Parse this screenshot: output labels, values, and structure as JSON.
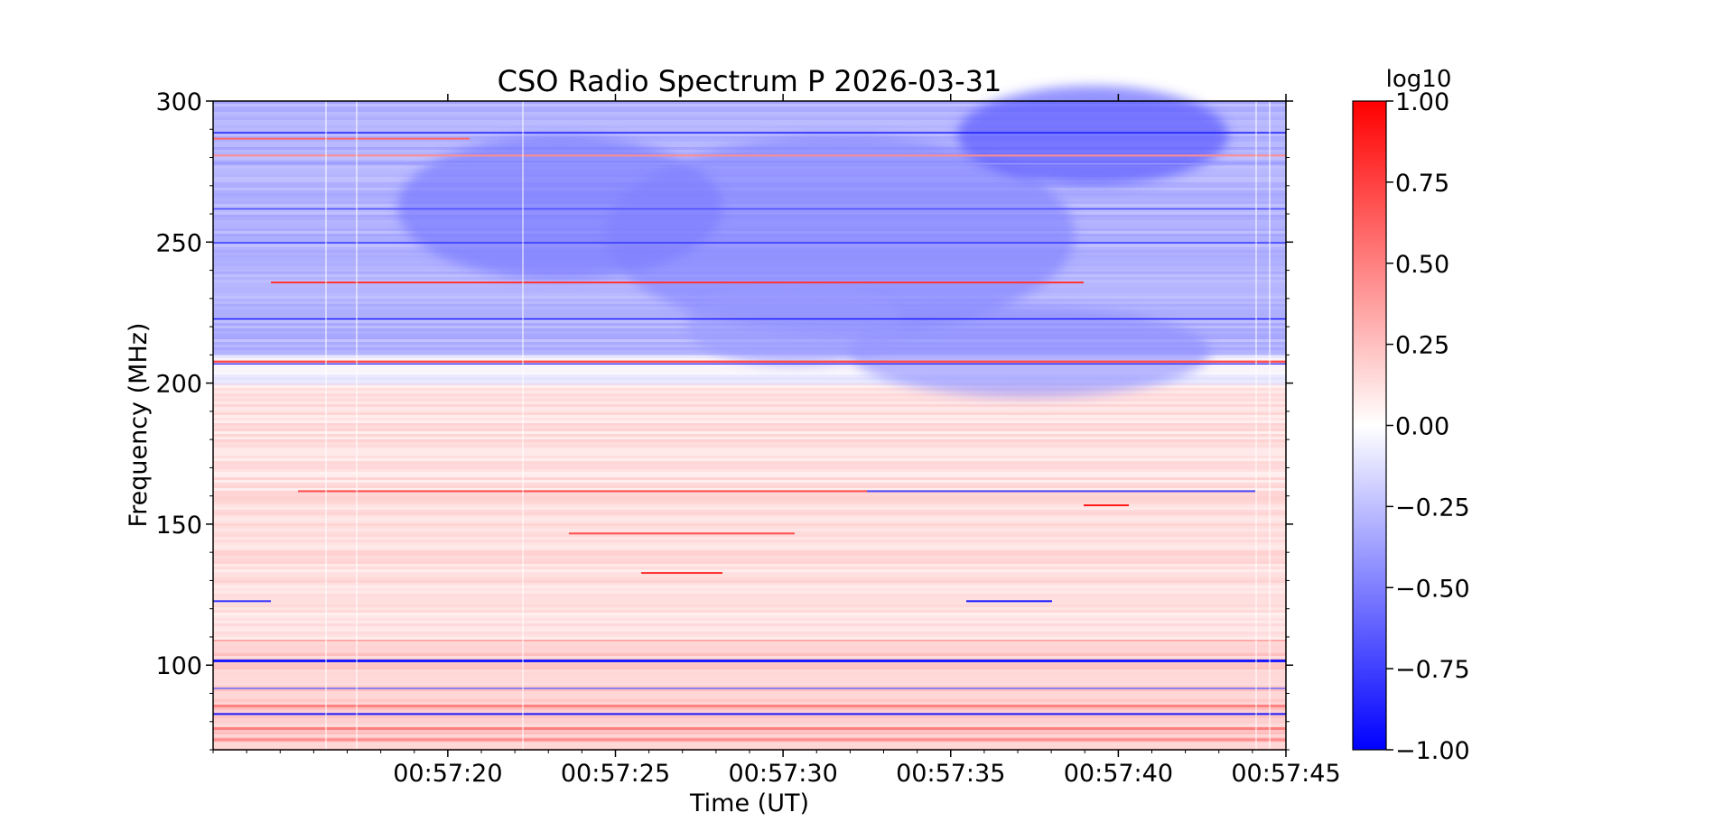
{
  "chart_data": {
    "type": "heatmap",
    "title": "CSO Radio Spectrum P 2026-03-31",
    "xlabel": "Time (UT)",
    "ylabel": "Frequency (MHz)",
    "colorbar_label": "log10",
    "x_range": [
      "00:57:13",
      "00:57:45"
    ],
    "x_ticks": [
      "00:57:20",
      "00:57:25",
      "00:57:30",
      "00:57:35",
      "00:57:40",
      "00:57:45"
    ],
    "ylim": [
      70,
      300
    ],
    "y_ticks": [
      300,
      250,
      200,
      150,
      100
    ],
    "colorbar_range": [
      -1.0,
      1.0
    ],
    "colorbar_ticks": [
      "1.00",
      "0.75",
      "0.50",
      "0.25",
      "0.00",
      "−0.25",
      "−0.50",
      "−0.75",
      "−1.00"
    ],
    "colormap": [
      "#0000ff",
      "#ffffff",
      "#ff0000"
    ],
    "grid": false,
    "regions": [
      {
        "freq": [
          210,
          300
        ],
        "value": -0.3
      },
      {
        "freq": [
          200,
          210
        ],
        "value": -0.05
      },
      {
        "freq": [
          105,
          200
        ],
        "value": 0.12
      },
      {
        "freq": [
          70,
          105
        ],
        "value": 0.2
      }
    ]
  }
}
